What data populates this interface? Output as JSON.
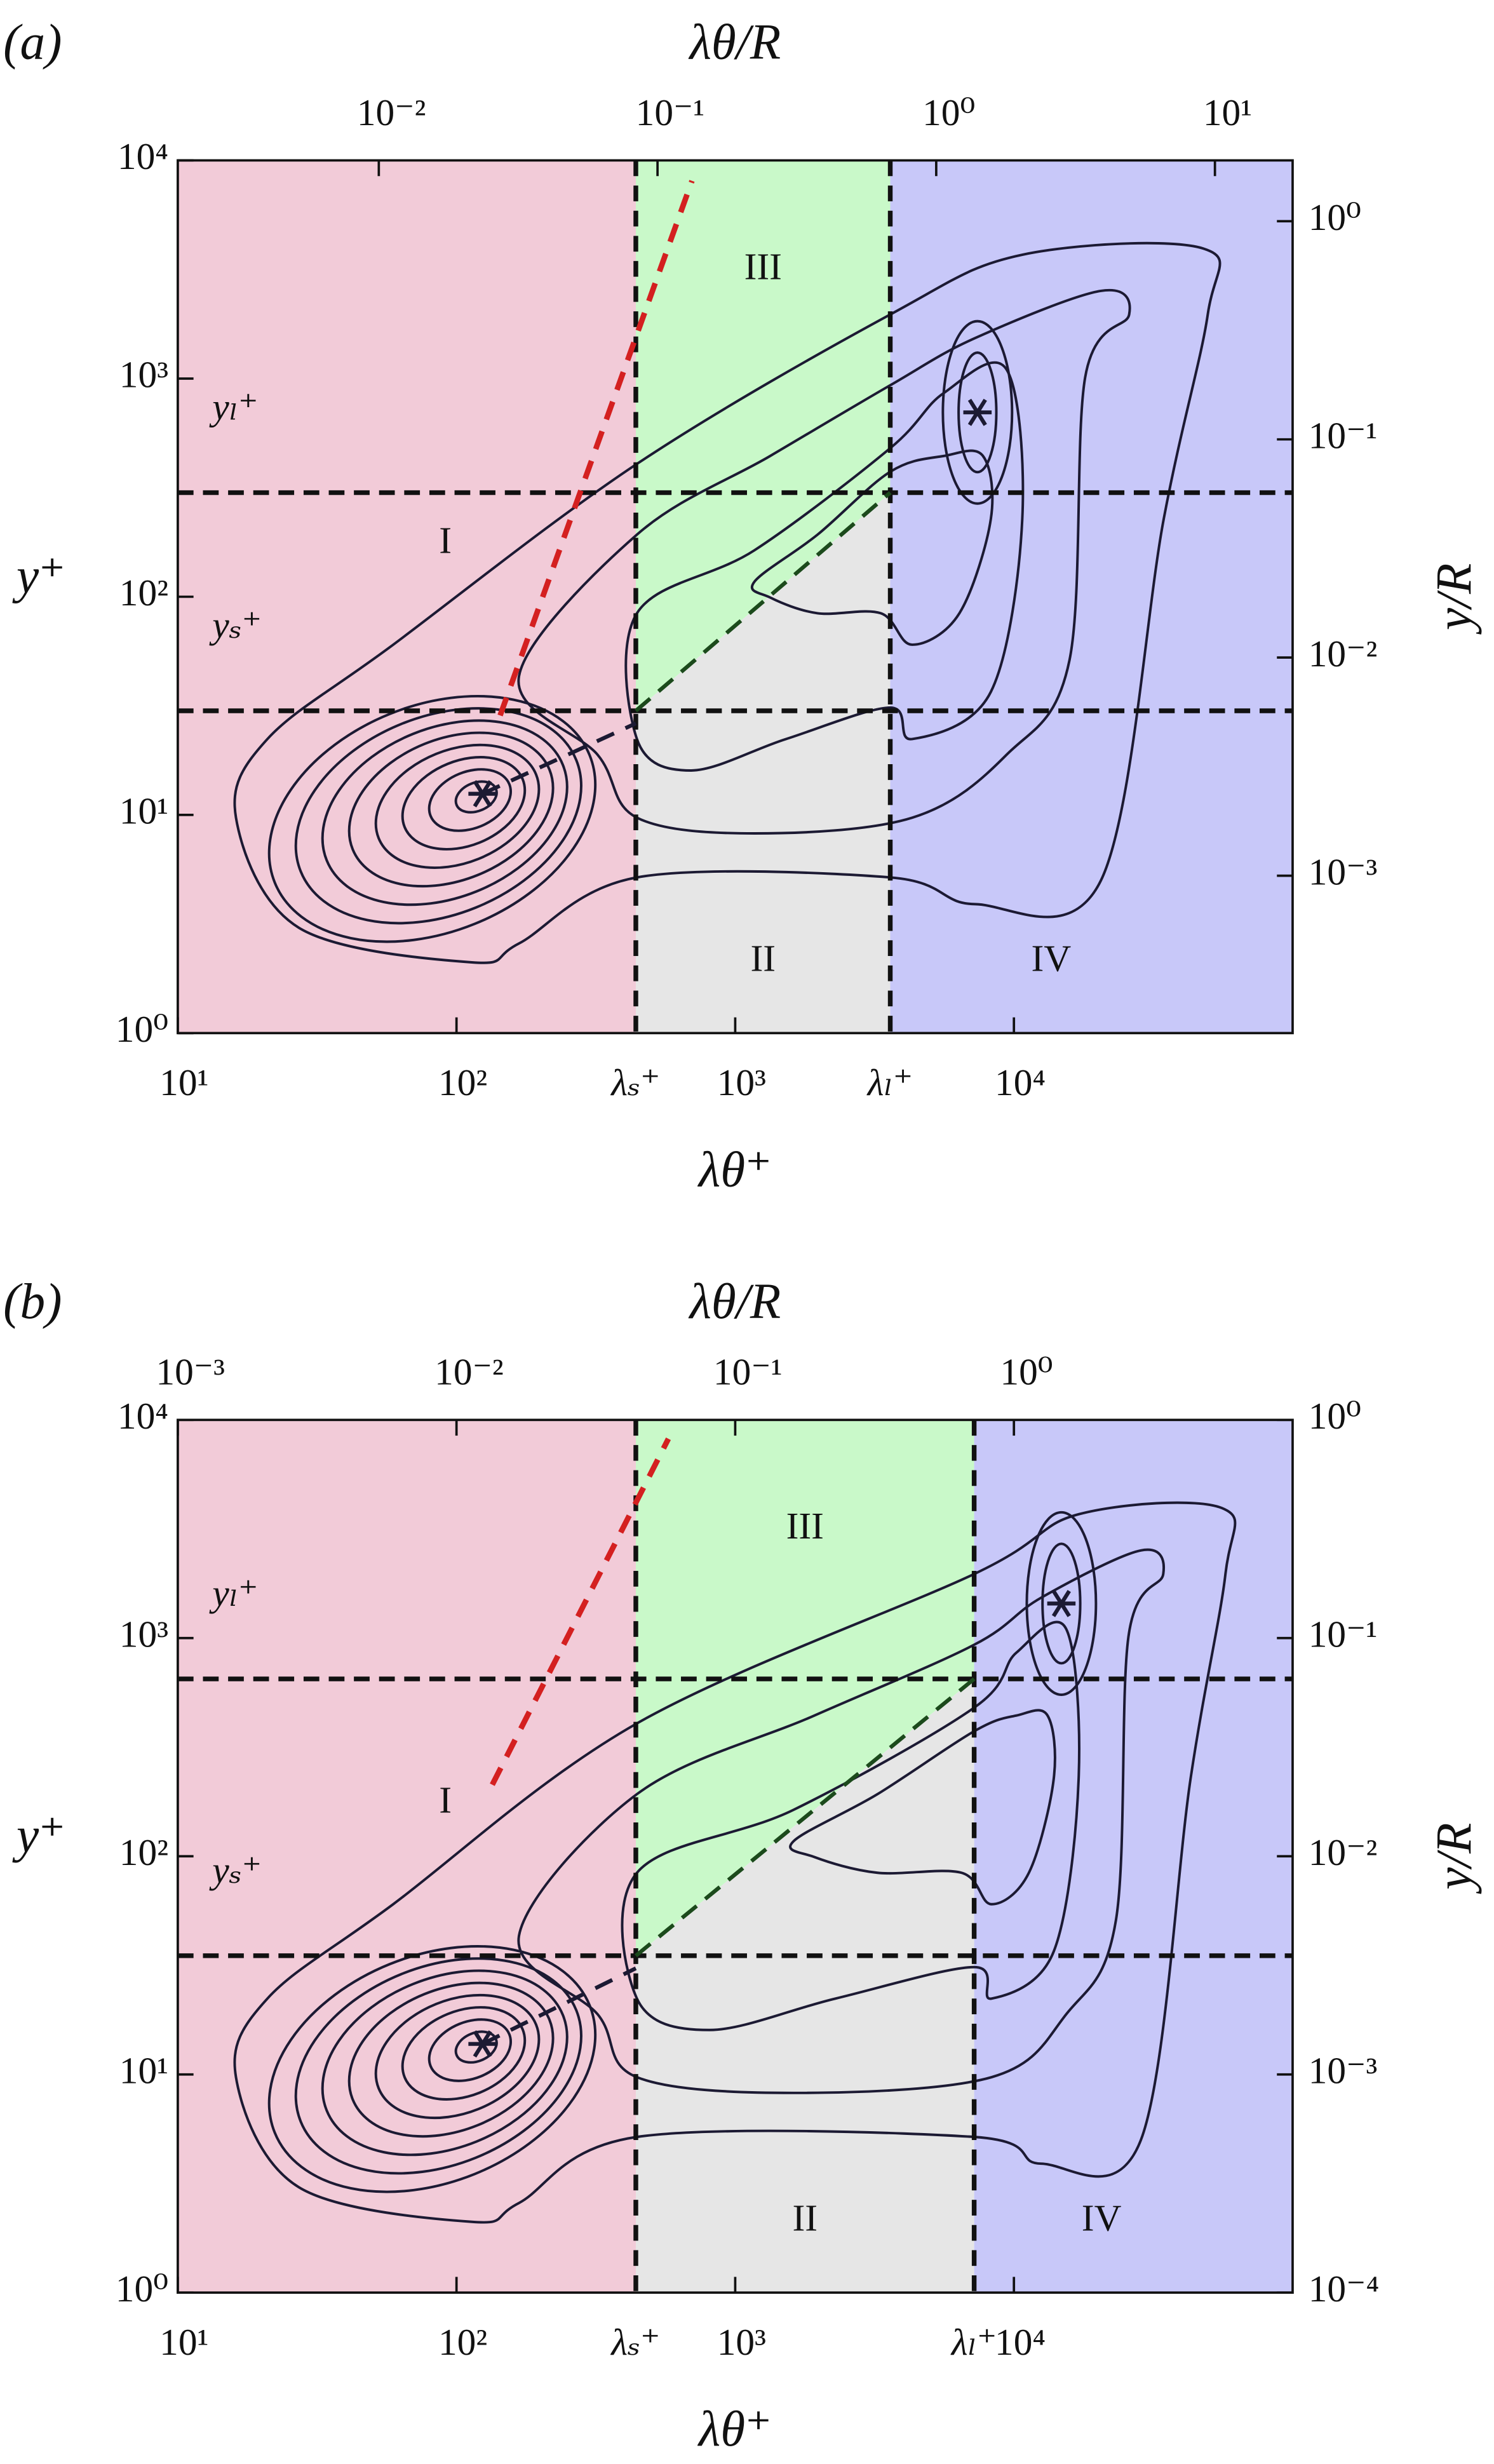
{
  "chart_data": [
    {
      "type": "contour",
      "panel_label": "(a)",
      "x_label": "λθ⁺",
      "x2_label": "λθ/R",
      "y_label": "y⁺",
      "y2_label": "y/R",
      "log_scale": true,
      "xlim": [
        10,
        100000
      ],
      "xticks": [
        {
          "value": 10,
          "label": "10¹"
        },
        {
          "value": 100,
          "label": "10²"
        },
        {
          "value": 1000,
          "label": "10³"
        },
        {
          "value": 10000,
          "label": "10⁴"
        }
      ],
      "x2lim": [
        0.0019,
        19
      ],
      "x2ticks": [
        {
          "value": 0.01,
          "label": "10⁻²"
        },
        {
          "value": 0.1,
          "label": "10⁻¹"
        },
        {
          "value": 1,
          "label": "10⁰"
        },
        {
          "value": 10,
          "label": "10¹"
        }
      ],
      "ylim": [
        1,
        10000
      ],
      "yticks": [
        {
          "value": 1,
          "label": "10⁰"
        },
        {
          "value": 10,
          "label": "10¹"
        },
        {
          "value": 100,
          "label": "10²"
        },
        {
          "value": 1000,
          "label": "10³"
        },
        {
          "value": 10000,
          "label": "10⁴"
        }
      ],
      "y2lim": [
        0.00019,
        1.9
      ],
      "y2ticks": [
        {
          "value": 0.001,
          "label": "10⁻³"
        },
        {
          "value": 0.01,
          "label": "10⁻²"
        },
        {
          "value": 0.1,
          "label": "10⁻¹"
        },
        {
          "value": 1,
          "label": "10⁰"
        }
      ],
      "vlines": [
        {
          "value": 440,
          "label": "λₛ⁺"
        },
        {
          "value": 3600,
          "label": "λₗ⁺"
        }
      ],
      "hlines": [
        {
          "value": 30,
          "label": "yₛ⁺"
        },
        {
          "value": 300,
          "label": "yₗ⁺"
        }
      ],
      "regions": [
        {
          "label": "I",
          "color": "#f2cbd8"
        },
        {
          "label": "II",
          "color": "#e6e6e6"
        },
        {
          "label": "III",
          "color": "#c9f9c9"
        },
        {
          "label": "IV",
          "color": "#c8c8f9"
        }
      ],
      "peaks": {
        "x": [
          124,
          7400
        ],
        "y": [
          12.5,
          700
        ]
      }
    },
    {
      "type": "contour",
      "panel_label": "(b)",
      "x_label": "λθ⁺",
      "x2_label": "λθ/R",
      "y_label": "y⁺",
      "y2_label": "y/R",
      "log_scale": true,
      "xlim": [
        10,
        100000
      ],
      "xticks": [
        {
          "value": 10,
          "label": "10¹"
        },
        {
          "value": 100,
          "label": "10²"
        },
        {
          "value": 1000,
          "label": "10³"
        },
        {
          "value": 10000,
          "label": "10⁴"
        }
      ],
      "x2lim": [
        0.001,
        10
      ],
      "x2ticks": [
        {
          "value": 0.001,
          "label": "10⁻³"
        },
        {
          "value": 0.01,
          "label": "10⁻²"
        },
        {
          "value": 0.1,
          "label": "10⁻¹"
        },
        {
          "value": 1,
          "label": "10⁰"
        }
      ],
      "ylim": [
        1,
        10000
      ],
      "yticks": [
        {
          "value": 1,
          "label": "10⁰"
        },
        {
          "value": 10,
          "label": "10¹"
        },
        {
          "value": 100,
          "label": "10²"
        },
        {
          "value": 1000,
          "label": "10³"
        },
        {
          "value": 10000,
          "label": "10⁴"
        }
      ],
      "y2lim": [
        0.0001,
        1
      ],
      "y2ticks": [
        {
          "value": 0.0001,
          "label": "10⁻⁴"
        },
        {
          "value": 0.001,
          "label": "10⁻³"
        },
        {
          "value": 0.01,
          "label": "10⁻²"
        },
        {
          "value": 0.1,
          "label": "10⁻¹"
        },
        {
          "value": 1,
          "label": "10⁰"
        }
      ],
      "vlines": [
        {
          "value": 440,
          "label": "λₛ⁺"
        },
        {
          "value": 7200,
          "label": "λₗ⁺"
        }
      ],
      "hlines": [
        {
          "value": 35,
          "label": "yₛ⁺"
        },
        {
          "value": 650,
          "label": "yₗ⁺"
        }
      ],
      "regions": [
        {
          "label": "I",
          "color": "#f2cbd8"
        },
        {
          "label": "II",
          "color": "#e6e6e6"
        },
        {
          "label": "III",
          "color": "#c9f9c9"
        },
        {
          "label": "IV",
          "color": "#c8c8f9"
        }
      ],
      "peaks": {
        "x": [
          124,
          14800
        ],
        "y": [
          13.8,
          1440
        ]
      }
    }
  ]
}
